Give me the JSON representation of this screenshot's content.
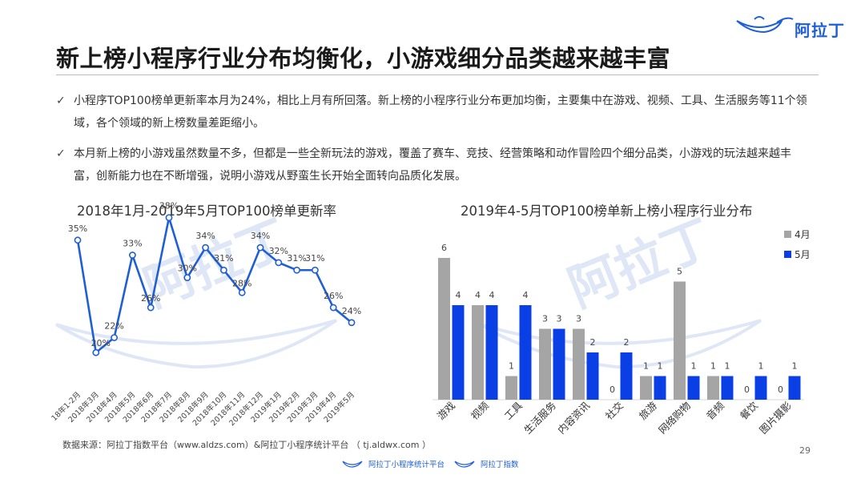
{
  "brand": {
    "name": "阿拉丁",
    "color": "#1f5fd6"
  },
  "title": "新上榜小程序行业分布均衡化，小游戏细分品类越来越丰富",
  "bullets": [
    {
      "icon": "check-icon",
      "text": "小程序TOP100榜单更新率本月为24%，相比上月有所回落。新上榜的小程序行业分布更加均衡，主要集中在游戏、视频、工具、生活服务等11个领域，各个领域的新上榜数量差距缩小。"
    },
    {
      "icon": "check-icon",
      "text": "本月新上榜的小游戏虽然数量不多，但都是一些全新玩法的游戏，覆盖了赛车、竞技、经营策略和动作冒险四个细分品类，小游戏的玩法越来越丰富，创新能力也在不断增强，说明小游戏从野蛮生长开始全面转向品质化发展。"
    }
  ],
  "chart_data": [
    {
      "type": "line",
      "title": "2018年1月-2019年5月TOP100榜单更新率",
      "categories": [
        "18年1-2月",
        "2018年3月",
        "2018年4月",
        "2018年5月",
        "2018年6月",
        "2018年7月",
        "2018年8月",
        "2018年9月",
        "2018年10月",
        "2018年11月",
        "2018年12月",
        "2019年1月",
        "2019年2月",
        "2019年3月",
        "2019年4月",
        "2019年5月"
      ],
      "series": [
        {
          "values": [
            35,
            20,
            22,
            33,
            26,
            38,
            30,
            34,
            31,
            28,
            34,
            32,
            31,
            31,
            26,
            24
          ],
          "color": "#1f5fd6"
        }
      ],
      "value_suffix": "%",
      "ylim": [
        15,
        40
      ],
      "grid": false
    },
    {
      "type": "bar",
      "title": "2019年4-5月TOP100榜单新上榜小程序行业分布",
      "categories": [
        "游戏",
        "视频",
        "工具",
        "生活服务",
        "内容资讯",
        "社交",
        "旅游",
        "网络购物",
        "音频",
        "餐饮",
        "图片摄影"
      ],
      "series": [
        {
          "name": "4月",
          "values": [
            6,
            4,
            1,
            3,
            3,
            0,
            1,
            5,
            1,
            0,
            0
          ],
          "color": "#a5a5a5"
        },
        {
          "name": "5月",
          "values": [
            4,
            4,
            4,
            3,
            2,
            2,
            1,
            1,
            1,
            1,
            1
          ],
          "color": "#0a3fe6"
        }
      ],
      "ylim": [
        0,
        6.5
      ],
      "legend": "top-right",
      "grid": false
    }
  ],
  "source": "数据来源：阿拉丁指数平台（www.aldzs.com）&阿拉丁小程序统计平台 （ tj.aldwx.com ）",
  "page_number": "29",
  "footer": {
    "platform_a": "阿拉丁小程序统计平台",
    "platform_b": "阿拉丁指数"
  },
  "watermark": {
    "text": "阿拉丁",
    "color": "#dfe7f6"
  }
}
